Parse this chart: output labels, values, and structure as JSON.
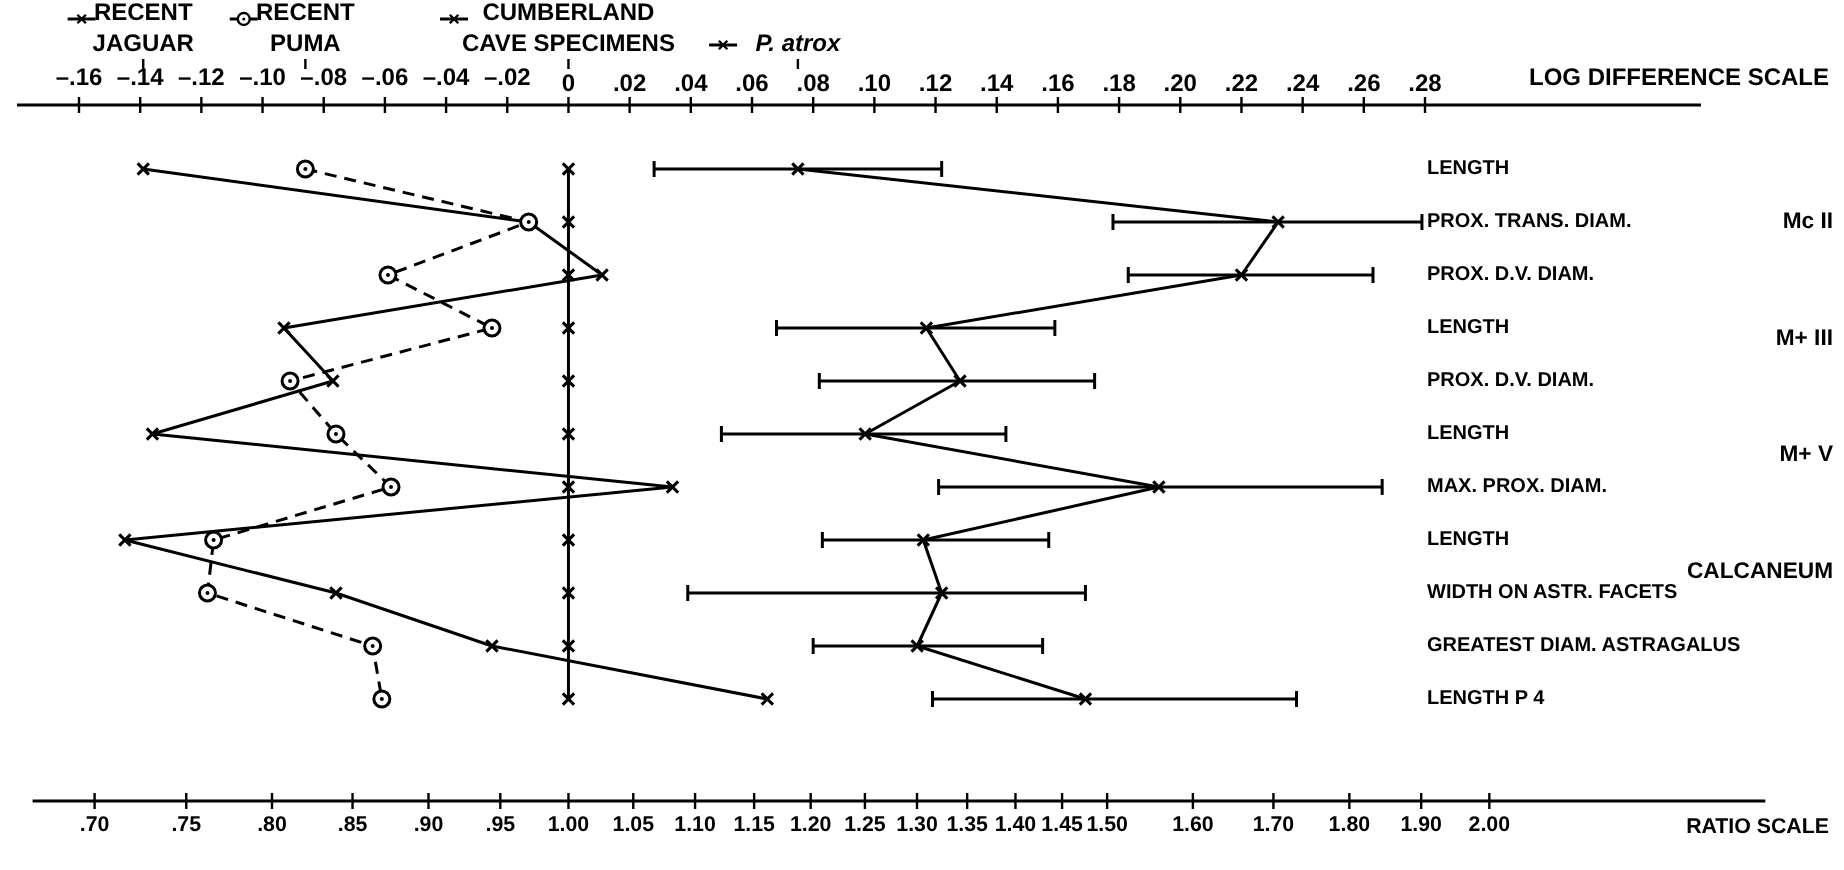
{
  "chart_data": {
    "type": "line",
    "orientation": "horizontal",
    "legend": "top",
    "xlabel": "LOG DIFFERENCE SCALE",
    "x2label": "RATIO SCALE",
    "categories": [
      "LENGTH",
      "PROX. TRANS. DIAM.",
      "PROX. D.V. DIAM.",
      "LENGTH",
      "PROX. D.V. DIAM.",
      "LENGTH",
      "MAX. PROX. DIAM.",
      "LENGTH",
      "WIDTH ON ASTR. FACETS",
      "GREATEST DIAM. ASTRAGALUS",
      "LENGTH P 4"
    ],
    "series": [
      {
        "name": "RECENT JAGUAR",
        "color": "#000000",
        "marker": "cross",
        "line_style": "solid",
        "values": [
          -0.139,
          -0.013,
          0.011,
          -0.093,
          -0.077,
          -0.136,
          0.034,
          -0.145,
          -0.076,
          -0.025,
          0.065
        ]
      },
      {
        "name": "RECENT PUMA",
        "color": "#000000",
        "marker": "circle",
        "line_style": "dashed",
        "values": [
          -0.086,
          -0.013,
          -0.059,
          -0.025,
          -0.091,
          -0.076,
          -0.058,
          -0.116,
          -0.118,
          -0.064,
          -0.061
        ]
      },
      {
        "name": "CUMBERLAND CAVE SPECIMENS",
        "color": "#000000",
        "marker": "cross",
        "line_style": "solid",
        "values": [
          0,
          0,
          0,
          0,
          0,
          0,
          0,
          0,
          0,
          0,
          0
        ]
      },
      {
        "name": "P. atrox",
        "color": "#000000",
        "marker": "cross",
        "line_style": "solid",
        "values": [
          0.075,
          0.232,
          0.22,
          0.117,
          0.128,
          0.097,
          0.193,
          0.116,
          0.122,
          0.114,
          0.169
        ],
        "errors": [
          [
            0.028,
            0.122
          ],
          [
            0.178,
            0.279
          ],
          [
            0.183,
            0.263
          ],
          [
            0.068,
            0.159
          ],
          [
            0.082,
            0.172
          ],
          [
            0.05,
            0.143
          ],
          [
            0.121,
            0.266
          ],
          [
            0.083,
            0.157
          ],
          [
            0.039,
            0.169
          ],
          [
            0.08,
            0.155
          ],
          [
            0.119,
            0.238
          ]
        ]
      }
    ],
    "xlim": [
      -0.16,
      0.28
    ],
    "xticks": [
      {
        "value": -0.16,
        "label": "–.16"
      },
      {
        "value": -0.14,
        "label": "–.14"
      },
      {
        "value": -0.12,
        "label": "–.12"
      },
      {
        "value": -0.1,
        "label": "–.10"
      },
      {
        "value": -0.08,
        "label": "–.08"
      },
      {
        "value": -0.06,
        "label": "–.06"
      },
      {
        "value": -0.04,
        "label": "–.04"
      },
      {
        "value": -0.02,
        "label": "–.02"
      },
      {
        "value": 0,
        "label": "0"
      },
      {
        "value": 0.02,
        "label": ".02"
      },
      {
        "value": 0.04,
        "label": ".04"
      },
      {
        "value": 0.06,
        "label": ".06"
      },
      {
        "value": 0.08,
        "label": ".08"
      },
      {
        "value": 0.1,
        "label": ".10"
      },
      {
        "value": 0.12,
        "label": ".12"
      },
      {
        "value": 0.14,
        "label": ".14"
      },
      {
        "value": 0.16,
        "label": ".16"
      },
      {
        "value": 0.18,
        "label": ".18"
      },
      {
        "value": 0.2,
        "label": ".20"
      },
      {
        "value": 0.22,
        "label": ".22"
      },
      {
        "value": 0.24,
        "label": ".24"
      },
      {
        "value": 0.26,
        "label": ".26"
      },
      {
        "value": 0.28,
        "label": ".28"
      }
    ],
    "log": "x2",
    "x2lim": [
      0.7,
      2.0
    ],
    "x2ticks": [
      {
        "value": 0.7,
        "label": ".70"
      },
      {
        "value": 0.75,
        "label": ".75"
      },
      {
        "value": 0.8,
        "label": ".80"
      },
      {
        "value": 0.85,
        "label": ".85"
      },
      {
        "value": 0.9,
        "label": ".90"
      },
      {
        "value": 0.95,
        "label": ".95"
      },
      {
        "value": 1.0,
        "label": "1.00"
      },
      {
        "value": 1.05,
        "label": "1.05"
      },
      {
        "value": 1.1,
        "label": "1.10"
      },
      {
        "value": 1.15,
        "label": "1.15"
      },
      {
        "value": 1.2,
        "label": "1.20"
      },
      {
        "value": 1.25,
        "label": "1.25"
      },
      {
        "value": 1.3,
        "label": "1.30"
      },
      {
        "value": 1.35,
        "label": "1.35"
      },
      {
        "value": 1.4,
        "label": "1.40"
      },
      {
        "value": 1.45,
        "label": "1.45"
      },
      {
        "value": 1.5,
        "label": "1.50"
      },
      {
        "value": 1.6,
        "label": "1.60"
      },
      {
        "value": 1.7,
        "label": "1.70"
      },
      {
        "value": 1.8,
        "label": "1.80"
      },
      {
        "value": 1.9,
        "label": "1.90"
      },
      {
        "value": 2.0,
        "label": "2.00"
      }
    ],
    "annotations": [
      "Mc II",
      "M+ III",
      "M+ V",
      "CALCANEUM"
    ]
  }
}
